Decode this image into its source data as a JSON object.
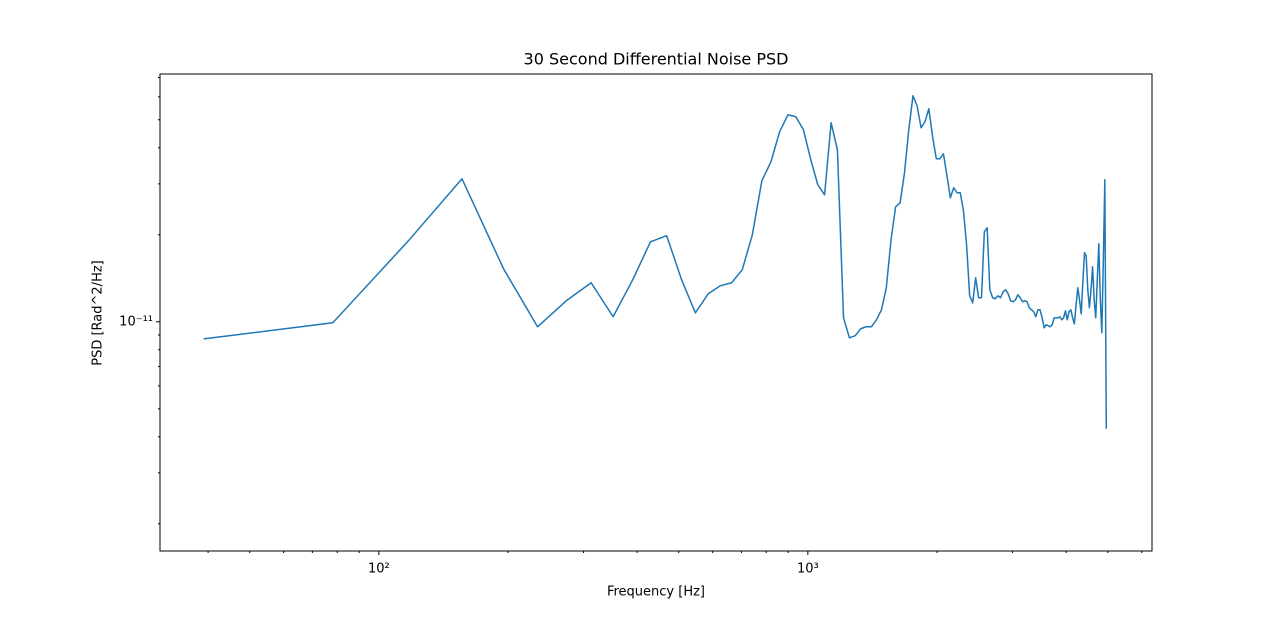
{
  "chart_data": {
    "type": "line",
    "title": "30 Second Differential Noise PSD",
    "x_label": "Frequency [Hz]",
    "y_label": "PSD [Rad^2/Hz]",
    "xscale": "log",
    "yscale": "log",
    "xlim": [
      30.9,
      6340
    ],
    "ylim": [
      1.61e-12,
      7.2e-11
    ],
    "xticks": [
      {
        "value": 100,
        "label": "10²"
      },
      {
        "value": 1000,
        "label": "10³"
      }
    ],
    "xminor_ticks": [
      40,
      50,
      60,
      70,
      80,
      90,
      200,
      300,
      400,
      500,
      600,
      700,
      800,
      900,
      2000,
      3000,
      4000,
      5000,
      6000
    ],
    "yticks": [
      {
        "value": 1e-11,
        "label": "10⁻¹¹"
      }
    ],
    "yminor_ticks": [
      2e-12,
      3e-12,
      4e-12,
      5e-12,
      6e-12,
      7e-12,
      8e-12,
      9e-12,
      2e-11,
      3e-11,
      4e-11,
      5e-11,
      6e-11,
      7e-11
    ],
    "x": [
      39.0625,
      78.125,
      117.1875,
      156.25,
      195.3125,
      234.375,
      273.4375,
      312.5,
      351.5625,
      390.625,
      429.6875,
      468.75,
      507.8125,
      546.875,
      585.9375,
      625,
      664.0625,
      703.125,
      742.1875,
      781.25,
      820.3125,
      859.375,
      898.4375,
      937.5,
      976.5625,
      1015.625,
      1054.6875,
      1093.75,
      1132.8125,
      1171.875,
      1210.9375,
      1250,
      1289.0625,
      1328.125,
      1367.1875,
      1406.25,
      1445.3125,
      1484.375,
      1523.4375,
      1562.5,
      1601.5625,
      1640.625,
      1679.6875,
      1718.75,
      1757.8125,
      1796.875,
      1835.9375,
      1875,
      1914.0625,
      1953.125,
      1992.1875,
      2031.25,
      2070.3125,
      2109.375,
      2148.4375,
      2187.5,
      2226.5625,
      2265.625,
      2304.6875,
      2343.75,
      2382.8125,
      2421.875,
      2460.9375,
      2500,
      2539.0625,
      2578.125,
      2617.1875,
      2656.25,
      2695.3125,
      2734.375,
      2773.4375,
      2812.5,
      2851.5625,
      2890.625,
      2929.6875,
      2968.75,
      3007.8125,
      3046.875,
      3085.9375,
      3125,
      3164.0625,
      3203.125,
      3242.1875,
      3281.25,
      3320.3125,
      3359.375,
      3398.4375,
      3437.5,
      3476.5625,
      3515.625,
      3554.6875,
      3593.75,
      3632.8125,
      3671.875,
      3710.9375,
      3750,
      3789.0625,
      3828.125,
      3867.1875,
      3906.25,
      3945.3125,
      3984.375,
      4023.4375,
      4062.5,
      4101.5625,
      4140.625,
      4179.6875,
      4218.75,
      4257.8125,
      4296.875,
      4335.9375,
      4375,
      4414.0625,
      4453.125,
      4492.1875,
      4531.25,
      4570.3125,
      4609.375,
      4648.4375,
      4687.5,
      4726.5625,
      4765.625,
      4804.6875,
      4843.75,
      4882.8125,
      4921.875,
      4960.9375
    ],
    "series": [
      {
        "color": "#1f77b4",
        "values": [
          8.73e-12,
          9.92e-12,
          1.906e-11,
          3.125e-11,
          1.525e-11,
          9.61e-12,
          1.182e-11,
          1.365e-11,
          1.041e-11,
          1.397e-11,
          1.891e-11,
          1.985e-11,
          1.397e-11,
          1.074e-11,
          1.25e-11,
          1.332e-11,
          1.365e-11,
          1.513e-11,
          2e-11,
          3.075e-11,
          3.578e-11,
          4.544e-11,
          5.203e-11,
          5.121e-11,
          4.617e-11,
          3.636e-11,
          2.979e-11,
          2.75e-11,
          4.883e-11,
          3.937e-11,
          1.032e-11,
          8.8e-12,
          8.95e-12,
          9.46e-12,
          9.61e-12,
          9.61e-12,
          1.016e-11,
          1.1e-11,
          1.311e-11,
          1.921e-11,
          2.5e-11,
          2.581e-11,
          3.279e-11,
          4.617e-11,
          6.053e-11,
          5.59e-11,
          4.692e-11,
          4.921e-11,
          5.458e-11,
          4.367e-11,
          3.664e-11,
          3.664e-11,
          3.814e-11,
          3.201e-11,
          2.686e-11,
          2.909e-11,
          2.795e-11,
          2.795e-11,
          2.422e-11,
          1.847e-11,
          1.23e-11,
          1.163e-11,
          1.42e-11,
          1.211e-11,
          1.211e-11,
          2.048e-11,
          2.115e-11,
          1.29e-11,
          1.211e-11,
          1.201e-11,
          1.23e-11,
          1.211e-11,
          1.27e-11,
          1.29e-11,
          1.25e-11,
          1.182e-11,
          1.173e-11,
          1.191e-11,
          1.24e-11,
          1.211e-11,
          1.173e-11,
          1.182e-11,
          1.173e-11,
          1.118e-11,
          1.1e-11,
          1.083e-11,
          1.041e-11,
          1.1e-11,
          1.1e-11,
          1.032e-11,
          9.53e-12,
          9.76e-12,
          9.69e-12,
          9.61e-12,
          9.76e-12,
          1.032e-11,
          1.032e-11,
          1.032e-11,
          1.041e-11,
          1.016e-11,
          1.032e-11,
          1.091e-11,
          1.016e-11,
          1.083e-11,
          1.1e-11,
          1.032e-11,
          9.84e-12,
          1.145e-11,
          1.311e-11,
          1.191e-11,
          1.066e-11,
          1.375e-11,
          1.733e-11,
          1.692e-11,
          1.29e-11,
          1.118e-11,
          1.29e-11,
          1.55e-11,
          1.191e-11,
          1.032e-11,
          1.397e-11,
          1.862e-11,
          1.191e-11,
          9.16e-12,
          1.639e-11,
          3.099e-11,
          4.264e-12
        ]
      }
    ]
  }
}
